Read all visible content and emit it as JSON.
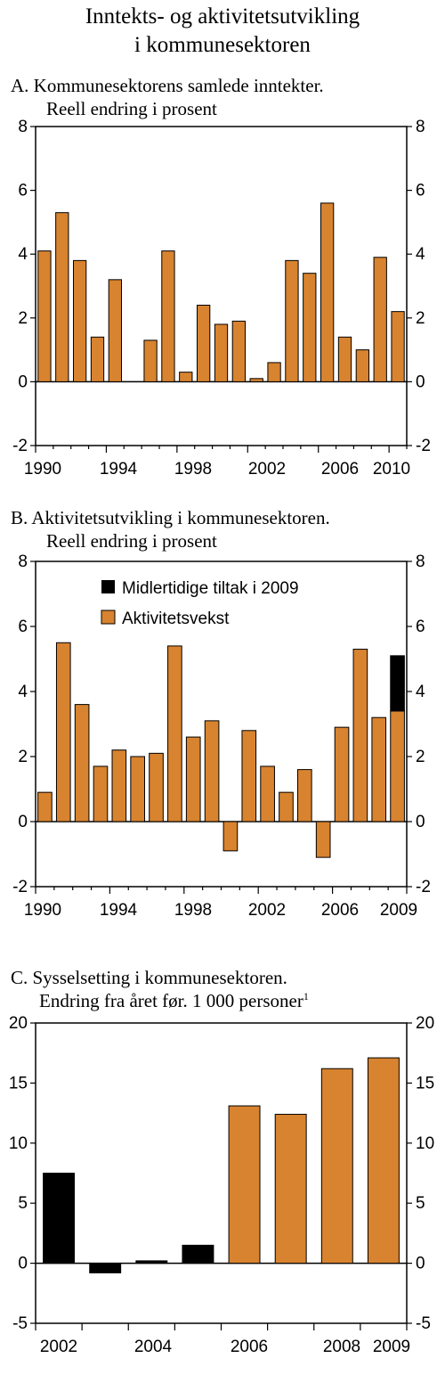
{
  "title_line1": "Inntekts- og aktivitetsutvikling",
  "title_line2": "i kommunesektoren",
  "colors": {
    "orange": "#D8832F",
    "black": "#000000"
  },
  "chart_data": [
    {
      "type": "bar",
      "panel_line1": "A.  Kommunesektorens samlede inntekter.",
      "panel_line2": "Reell endring i prosent",
      "x": [
        1990,
        1991,
        1992,
        1993,
        1994,
        1995,
        1996,
        1997,
        1998,
        1999,
        2000,
        2001,
        2002,
        2003,
        2004,
        2005,
        2006,
        2007,
        2008,
        2009,
        2010
      ],
      "values": [
        4.1,
        5.3,
        3.8,
        1.4,
        3.2,
        0,
        1.3,
        4.1,
        0.3,
        2.4,
        1.8,
        1.9,
        0.1,
        0.6,
        3.8,
        3.4,
        5.6,
        1.4,
        1.0,
        3.9,
        2.2
      ],
      "ylim": [
        -2,
        8
      ],
      "yticks": [
        "-2",
        "0",
        "2",
        "4",
        "6",
        "8"
      ],
      "xtick_labels": [
        "1990",
        "1994",
        "1998",
        "2002",
        "2006",
        "2010"
      ]
    },
    {
      "type": "bar",
      "stacked": true,
      "panel_line1": "B.  Aktivitetsutvikling i kommunesektoren.",
      "panel_line2": "Reell endring i prosent",
      "x": [
        1990,
        1991,
        1992,
        1993,
        1994,
        1995,
        1996,
        1997,
        1998,
        1999,
        2000,
        2001,
        2002,
        2003,
        2004,
        2005,
        2006,
        2007,
        2008,
        2009
      ],
      "series": [
        {
          "name": "Aktivitetsvekst",
          "color": "orange",
          "values": [
            0.9,
            5.5,
            3.6,
            1.7,
            2.2,
            2.0,
            2.1,
            5.4,
            2.6,
            3.1,
            -0.9,
            2.8,
            1.7,
            0.9,
            1.6,
            -1.1,
            2.9,
            5.3,
            3.2,
            3.4
          ]
        },
        {
          "name": "Midlertidige tiltak i 2009",
          "color": "black",
          "values": [
            0,
            0,
            0,
            0,
            0,
            0,
            0,
            0,
            0,
            0,
            0,
            0,
            0,
            0,
            0,
            0,
            0,
            0,
            0,
            1.7
          ]
        }
      ],
      "ylim": [
        -2,
        8
      ],
      "yticks": [
        "-2",
        "0",
        "2",
        "4",
        "6",
        "8"
      ],
      "xtick_labels": [
        "1990",
        "1994",
        "1998",
        "2002",
        "2006",
        "2009"
      ],
      "legend_position": "top"
    },
    {
      "type": "bar",
      "panel_line1": "C.  Sysselsetting i kommunesektoren.",
      "panel_line2": "Endring fra året før. 1 000 personer",
      "panel_sup": "1",
      "x": [
        2002,
        2003,
        2004,
        2005,
        2006,
        2007,
        2008,
        2009
      ],
      "values": [
        7.5,
        -0.8,
        0.2,
        1.5,
        13.1,
        12.4,
        16.2,
        17.1
      ],
      "bar_colors": [
        "black",
        "black",
        "black",
        "black",
        "orange",
        "orange",
        "orange",
        "orange"
      ],
      "ylim": [
        -5,
        20
      ],
      "yticks": [
        "-5",
        "0",
        "5",
        "10",
        "15",
        "20"
      ],
      "xtick_labels": [
        "2002",
        "2004",
        "2006",
        "2008",
        "2009"
      ]
    }
  ]
}
